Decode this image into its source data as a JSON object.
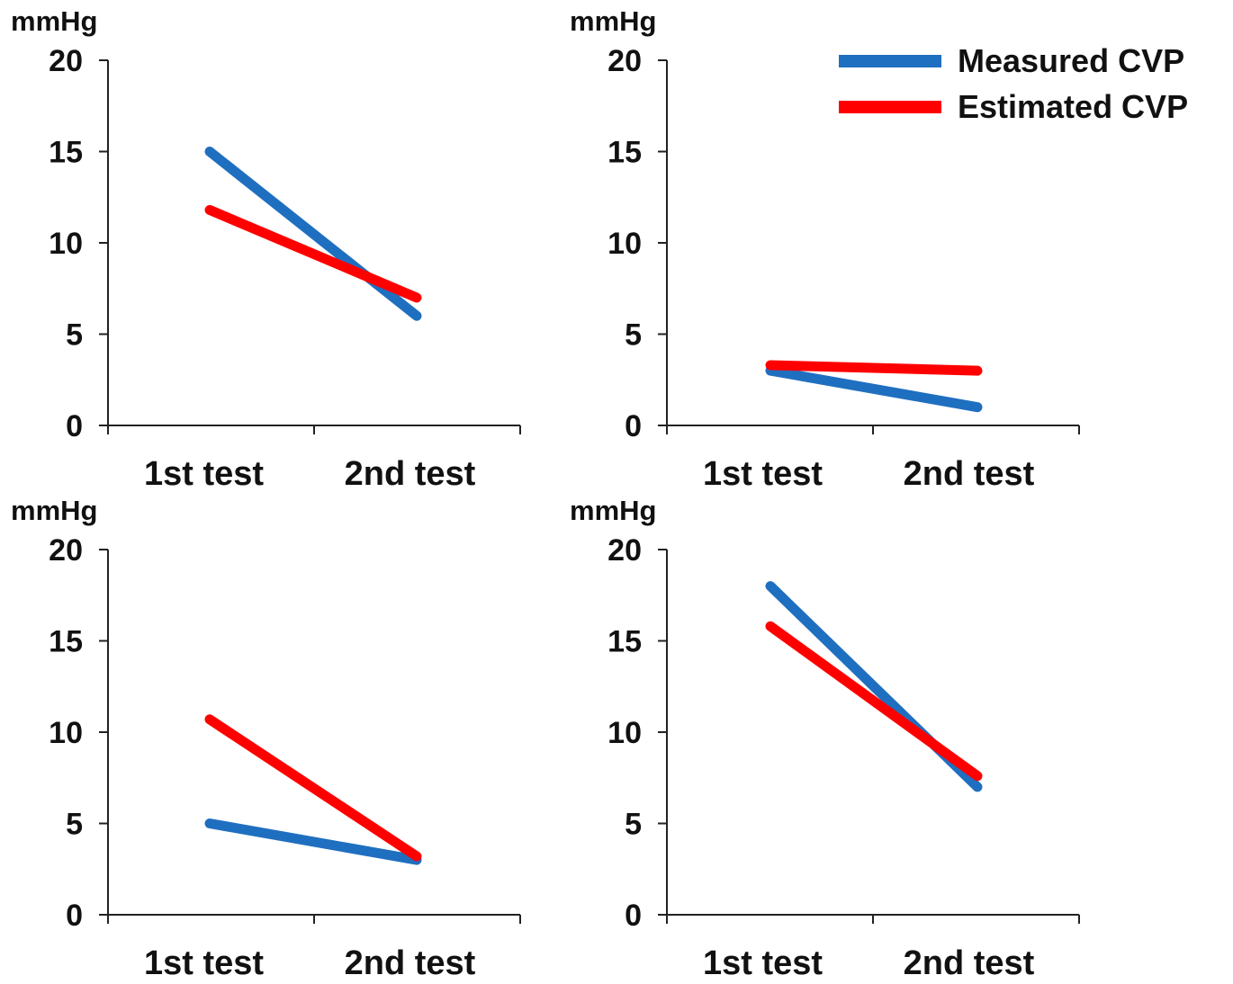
{
  "chart_data": [
    {
      "type": "line",
      "ylabel": "mmHg",
      "ylim": [
        0,
        20
      ],
      "yticks": [
        "0",
        "5",
        "10",
        "15",
        "20"
      ],
      "categories": [
        "1st test",
        "2nd test"
      ],
      "series": [
        {
          "name": "Measured CVP",
          "color": "#1f6fc0",
          "values": [
            15,
            6
          ]
        },
        {
          "name": "Estimated CVP",
          "color": "#ff0000",
          "values": [
            11.8,
            7
          ]
        }
      ]
    },
    {
      "type": "line",
      "ylabel": "mmHg",
      "ylim": [
        0,
        20
      ],
      "yticks": [
        "0",
        "5",
        "10",
        "15",
        "20"
      ],
      "categories": [
        "1st test",
        "2nd test"
      ],
      "series": [
        {
          "name": "Measured CVP",
          "color": "#1f6fc0",
          "values": [
            3,
            1
          ]
        },
        {
          "name": "Estimated CVP",
          "color": "#ff0000",
          "values": [
            3.3,
            3
          ]
        }
      ]
    },
    {
      "type": "line",
      "ylabel": "mmHg",
      "ylim": [
        0,
        20
      ],
      "yticks": [
        "0",
        "5",
        "10",
        "15",
        "20"
      ],
      "categories": [
        "1st test",
        "2nd test"
      ],
      "series": [
        {
          "name": "Measured CVP",
          "color": "#1f6fc0",
          "values": [
            5,
            3
          ]
        },
        {
          "name": "Estimated CVP",
          "color": "#ff0000",
          "values": [
            10.7,
            3.2
          ]
        }
      ]
    },
    {
      "type": "line",
      "ylabel": "mmHg",
      "ylim": [
        0,
        20
      ],
      "yticks": [
        "0",
        "5",
        "10",
        "15",
        "20"
      ],
      "categories": [
        "1st test",
        "2nd test"
      ],
      "series": [
        {
          "name": "Measured CVP",
          "color": "#1f6fc0",
          "values": [
            18,
            7
          ]
        },
        {
          "name": "Estimated CVP",
          "color": "#ff0000",
          "values": [
            15.8,
            7.6
          ]
        }
      ]
    }
  ],
  "legend": {
    "placement": "top-right",
    "items": [
      {
        "label": "Measured CVP",
        "color": "#1f6fc0"
      },
      {
        "label": "Estimated CVP",
        "color": "#ff0000"
      }
    ]
  }
}
